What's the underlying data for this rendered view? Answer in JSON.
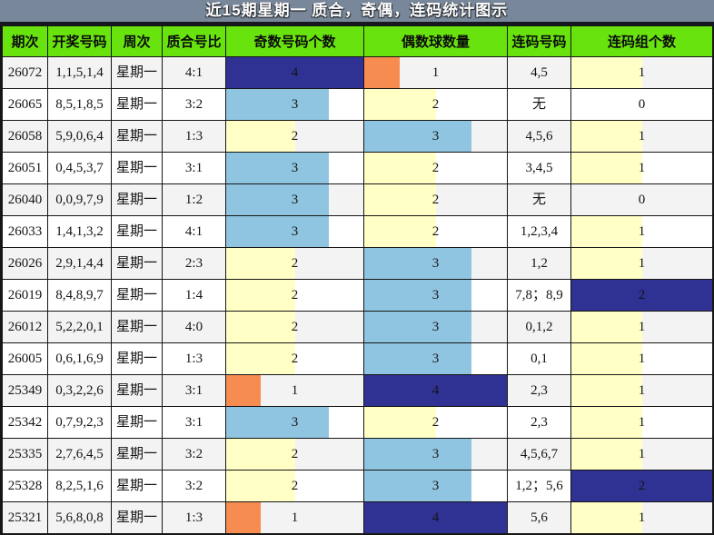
{
  "header": {
    "title": "近15期星期一 质合，奇偶，连码统计图示"
  },
  "colors": {
    "title_bg": "#788799",
    "title_text": "#FFFFFF",
    "column_header_bg": "#69E30E",
    "row_bg_alt": "#F3F3F3",
    "row_bg": "#FFFFFF",
    "grid_border": "#161616",
    "bar_navy": "#2F3193",
    "bar_light_blue": "#8FC5E0",
    "bar_yellow": "#FFFFC6",
    "bar_orange": "#F78C51"
  },
  "chart_data": {
    "type": "table",
    "title": "近15期星期一 质合，奇偶，连码统计图示",
    "none_label": "无",
    "columns": [
      {
        "key": "period",
        "label": "期次"
      },
      {
        "key": "numbers",
        "label": "开奖号码"
      },
      {
        "key": "week",
        "label": "周次"
      },
      {
        "key": "ratio",
        "label": "质合号比"
      },
      {
        "key": "odd_count",
        "label": "奇数号码个数"
      },
      {
        "key": "even_count",
        "label": "偶数球数量"
      },
      {
        "key": "consecutive_numbers",
        "label": "连码号码"
      },
      {
        "key": "consecutive_groups",
        "label": "连码组个数"
      }
    ],
    "bars": {
      "odd_count": {
        "max": 4,
        "palette": "count"
      },
      "even_count": {
        "max": 4,
        "palette": "count"
      },
      "consecutive_groups": {
        "max": 2,
        "palette": "group"
      }
    },
    "palettes": {
      "count": {
        "1": "#F78C51",
        "2": "#FFFFC6",
        "3": "#8FC5E0",
        "4": "#2F3193"
      },
      "group": {
        "1": "#FFFFC6",
        "2": "#2F3193"
      }
    },
    "rows": [
      {
        "period": "26072",
        "numbers": "1,1,5,1,4",
        "week": "星期一",
        "ratio": "4:1",
        "odd_count": 4,
        "even_count": 1,
        "consecutive_numbers": "4,5",
        "consecutive_groups": 1
      },
      {
        "period": "26065",
        "numbers": "8,5,1,8,5",
        "week": "星期一",
        "ratio": "3:2",
        "odd_count": 3,
        "even_count": 2,
        "consecutive_numbers": "无",
        "consecutive_groups": 0
      },
      {
        "period": "26058",
        "numbers": "5,9,0,6,4",
        "week": "星期一",
        "ratio": "1:3",
        "odd_count": 2,
        "even_count": 3,
        "consecutive_numbers": "4,5,6",
        "consecutive_groups": 1
      },
      {
        "period": "26051",
        "numbers": "0,4,5,3,7",
        "week": "星期一",
        "ratio": "3:1",
        "odd_count": 3,
        "even_count": 2,
        "consecutive_numbers": "3,4,5",
        "consecutive_groups": 1
      },
      {
        "period": "26040",
        "numbers": "0,0,9,7,9",
        "week": "星期一",
        "ratio": "1:2",
        "odd_count": 3,
        "even_count": 2,
        "consecutive_numbers": "无",
        "consecutive_groups": 0
      },
      {
        "period": "26033",
        "numbers": "1,4,1,3,2",
        "week": "星期一",
        "ratio": "4:1",
        "odd_count": 3,
        "even_count": 2,
        "consecutive_numbers": "1,2,3,4",
        "consecutive_groups": 1
      },
      {
        "period": "26026",
        "numbers": "2,9,1,4,4",
        "week": "星期一",
        "ratio": "2:3",
        "odd_count": 2,
        "even_count": 3,
        "consecutive_numbers": "1,2",
        "consecutive_groups": 1
      },
      {
        "period": "26019",
        "numbers": "8,4,8,9,7",
        "week": "星期一",
        "ratio": "1:4",
        "odd_count": 2,
        "even_count": 3,
        "consecutive_numbers": "7,8；8,9",
        "consecutive_groups": 2
      },
      {
        "period": "26012",
        "numbers": "5,2,2,0,1",
        "week": "星期一",
        "ratio": "4:0",
        "odd_count": 2,
        "even_count": 3,
        "consecutive_numbers": "0,1,2",
        "consecutive_groups": 1
      },
      {
        "period": "26005",
        "numbers": "0,6,1,6,9",
        "week": "星期一",
        "ratio": "1:3",
        "odd_count": 2,
        "even_count": 3,
        "consecutive_numbers": "0,1",
        "consecutive_groups": 1
      },
      {
        "period": "25349",
        "numbers": "0,3,2,2,6",
        "week": "星期一",
        "ratio": "3:1",
        "odd_count": 1,
        "even_count": 4,
        "consecutive_numbers": "2,3",
        "consecutive_groups": 1
      },
      {
        "period": "25342",
        "numbers": "0,7,9,2,3",
        "week": "星期一",
        "ratio": "3:1",
        "odd_count": 3,
        "even_count": 2,
        "consecutive_numbers": "2,3",
        "consecutive_groups": 1
      },
      {
        "period": "25335",
        "numbers": "2,7,6,4,5",
        "week": "星期一",
        "ratio": "3:2",
        "odd_count": 2,
        "even_count": 3,
        "consecutive_numbers": "4,5,6,7",
        "consecutive_groups": 1
      },
      {
        "period": "25328",
        "numbers": "8,2,5,1,6",
        "week": "星期一",
        "ratio": "3:2",
        "odd_count": 2,
        "even_count": 3,
        "consecutive_numbers": "1,2；5,6",
        "consecutive_groups": 2
      },
      {
        "period": "25321",
        "numbers": "5,6,8,0,8",
        "week": "星期一",
        "ratio": "1:3",
        "odd_count": 1,
        "even_count": 4,
        "consecutive_numbers": "5,6",
        "consecutive_groups": 1
      }
    ]
  }
}
